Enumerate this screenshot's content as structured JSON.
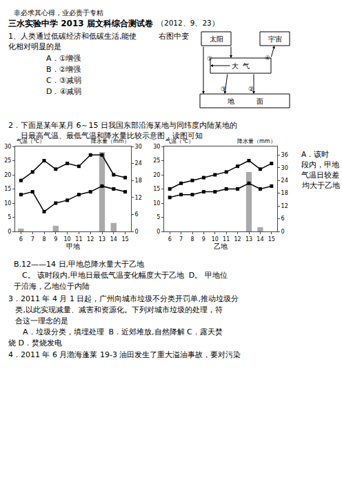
{
  "chart_data": [
    {
      "type": "line",
      "xlabel": "甲地",
      "ylabel": "气温（℃）",
      "y2label": "降水量（mm）",
      "x": [
        6,
        7,
        8,
        9,
        10,
        11,
        12,
        13,
        14,
        15
      ],
      "xlim": [
        5.5,
        15.5
      ],
      "xticks": [
        6,
        7,
        8,
        9,
        10,
        11,
        12,
        13,
        14,
        15
      ],
      "ylim": [
        0,
        30
      ],
      "yticks": [
        0,
        5,
        10,
        15,
        20,
        25,
        30
      ],
      "y2lim": [
        0,
        30
      ],
      "y2ticks": [
        0,
        6,
        12,
        18,
        24,
        30
      ],
      "grid": false,
      "series": [
        {
          "type": "bar",
          "axis": "y2",
          "color": "#aaaaaa",
          "values": [
            1,
            0,
            0,
            2,
            0,
            0,
            0,
            28,
            3,
            0
          ]
        },
        {
          "type": "line",
          "color": "#000000",
          "marker": "square",
          "values": [
            18,
            21,
            25,
            22,
            24,
            23,
            27,
            27,
            20,
            19
          ]
        },
        {
          "type": "line",
          "color": "#000000",
          "marker": "square",
          "values": [
            13,
            14,
            7,
            10,
            11,
            13,
            14,
            16,
            15,
            14
          ]
        }
      ]
    },
    {
      "type": "line",
      "xlabel": "乙地",
      "ylabel": "气温（℃）",
      "y2label": "降水量（mm）",
      "x": [
        6,
        7,
        8,
        9,
        10,
        11,
        12,
        13,
        14,
        15
      ],
      "xlim": [
        5.5,
        15.5
      ],
      "xticks": [
        6,
        7,
        8,
        9,
        10,
        11,
        12,
        13,
        14,
        15
      ],
      "ylim": [
        0,
        30
      ],
      "yticks": [
        0,
        5,
        10,
        15,
        20,
        25,
        30
      ],
      "y2lim": [
        0,
        40
      ],
      "y2ticks": [
        0,
        6,
        12,
        18,
        24,
        30,
        36
      ],
      "grid": false,
      "series": [
        {
          "type": "bar",
          "axis": "y2",
          "color": "#aaaaaa",
          "values": [
            0,
            0,
            0,
            0,
            0,
            0,
            0,
            28,
            2,
            0
          ]
        },
        {
          "type": "line",
          "color": "#000000",
          "marker": "square",
          "values": [
            15,
            17,
            18,
            19,
            20,
            21,
            23,
            25,
            22,
            24
          ]
        },
        {
          "type": "line",
          "color": "#000000",
          "marker": "square",
          "values": [
            12,
            13,
            13,
            14,
            14,
            15,
            15,
            17,
            15,
            16
          ]
        }
      ]
    }
  ],
  "annotations": [
    "非必求其心得，业必贵于专精",
    "三水实验中学 2013 届文科综合测试卷",
    "（2012、9、23）",
    "1、人类通过低碳经济和低碳生活,能使",
    "右图中变",
    "化相对明显的是",
    "A．①增强",
    "B．②增强",
    "C．③减弱",
    "D．④减弱",
    "太阳",
    "宇宙",
    "大  气",
    "地          面",
    "①",
    "④",
    "③",
    "②",
    "2．下面是某年某月 6～15 日我国东部沿海某地与同纬度内陆某地的",
    "日最高气温、最低气温和降水量比较示意图，读图可知",
    "A．该时",
    "段内，甲地",
    "气温日较差",
    "均大于乙地",
    "B.12——14 日,甲地总降水量大于乙地",
    "C。 该时段内,甲地日最低气温变化幅度大于乙地  D。 甲地位",
    "于沿海，乙地位于内陆",
    "3．2011 年 4 月 1 日起，广州向城市垃圾不分类开罚单,推动垃圾分",
    "   类,以此实现减量、减害和资源化。下列对城市垃圾的处理，符",
    "   合这一理念的是",
    "      A．垃圾分类，填埋处理  B．近郊堆放,自然降解 C．露天焚",
    "烧 D．焚烧发电",
    "4．2011 年 6 月渤海蓬莱 19-3 油田发生了重大溢油事故，要对污染"
  ]
}
